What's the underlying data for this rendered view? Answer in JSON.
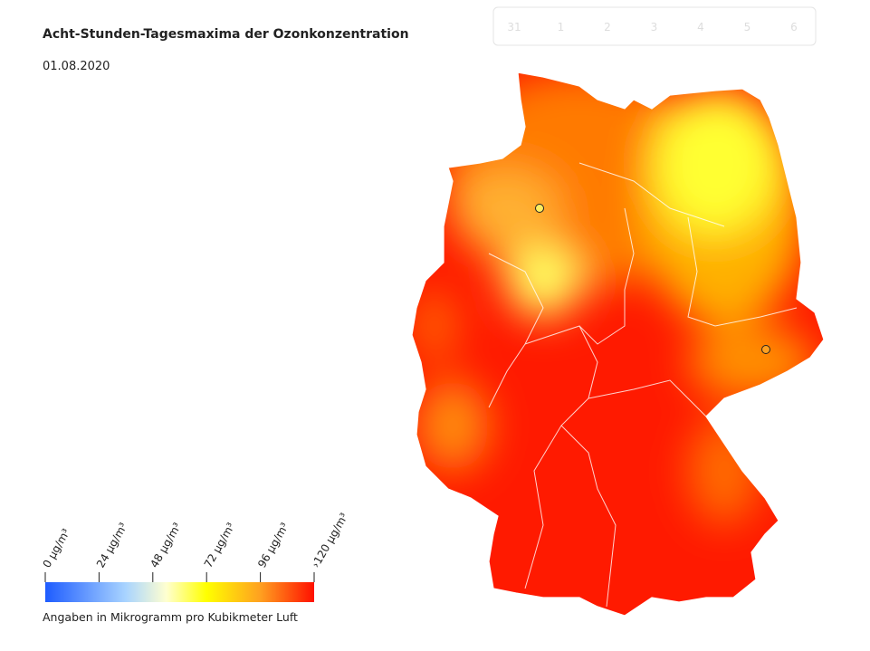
{
  "header": {
    "title": "Acht-Stunden-Tagesmaxima der Ozonkonzentration",
    "date": "01.08.2020"
  },
  "date_selector": {
    "days": [
      "31",
      "1",
      "2",
      "3",
      "4",
      "5",
      "6"
    ]
  },
  "legend": {
    "ticks": [
      "0 µg/m³",
      "24 µg/m³",
      "48 µg/m³",
      "72 µg/m³",
      "96 µg/m³",
      "›120 µg/m³"
    ],
    "caption": "Angaben in Mikrogramm pro Kubikmeter Luft"
  }
}
